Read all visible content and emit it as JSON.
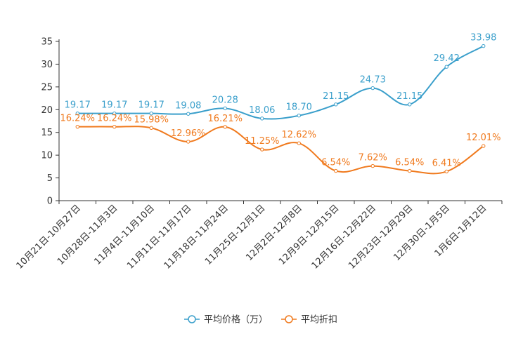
{
  "chart_data": {
    "type": "line",
    "categories": [
      "10月21日-10月27日",
      "10月28日-11月3日",
      "11月4日-11月10日",
      "11月11日-11月17日",
      "11月18日-11月24日",
      "11月25日-12月1日",
      "12月2日-12月8日",
      "12月9日-12月15日",
      "12月16日-12月22日",
      "12月23日-12月29日",
      "12月30日-1月5日",
      "1月6日-1月12日"
    ],
    "ylim": [
      0,
      35
    ],
    "yticks": [
      0,
      5,
      10,
      15,
      20,
      25,
      30,
      35
    ],
    "series": [
      {
        "name": "平均价格（万）",
        "color": "#3a9fcb",
        "values": [
          19.17,
          19.17,
          19.17,
          19.08,
          20.28,
          18.06,
          18.7,
          21.15,
          24.73,
          21.15,
          29.42,
          33.98
        ],
        "labels": [
          "19.17",
          "19.17",
          "19.17",
          "19.08",
          "20.28",
          "18.06",
          "18.70",
          "21.15",
          "24.73",
          "21.15",
          "29.42",
          "33.98"
        ]
      },
      {
        "name": "平均折扣",
        "color": "#f07a1e",
        "values": [
          16.24,
          16.24,
          15.98,
          12.96,
          16.21,
          11.25,
          12.62,
          6.54,
          7.62,
          6.54,
          6.41,
          12.01
        ],
        "labels": [
          "16.24%",
          "16.24%",
          "15.98%",
          "12.96%",
          "16.21%",
          "11.25%",
          "12.62%",
          "6.54%",
          "7.62%",
          "6.54%",
          "6.41%",
          "12.01%"
        ]
      }
    ],
    "legend_position": "bottom-center",
    "grid": false
  }
}
